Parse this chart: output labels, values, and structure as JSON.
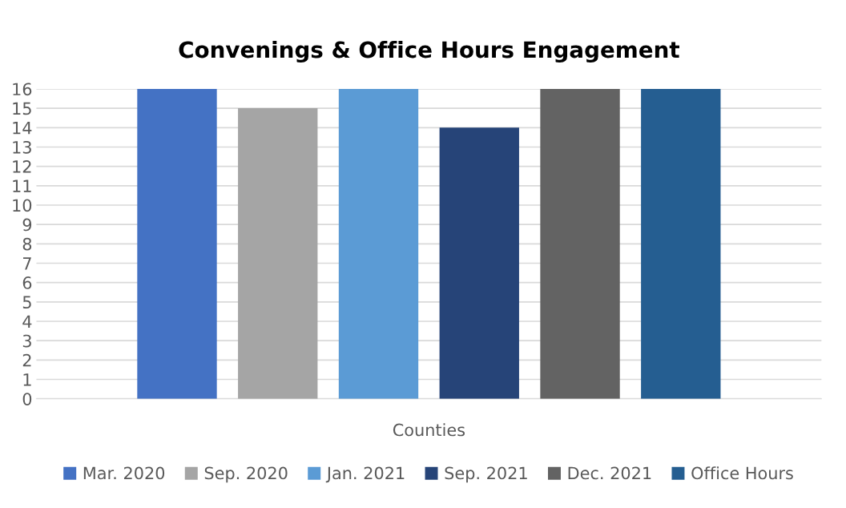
{
  "chart_data": {
    "type": "bar",
    "title": "Convenings & Office Hours Engagement",
    "categories": [
      "Counties"
    ],
    "series": [
      {
        "name": "Mar. 2020",
        "color": "#4472c4",
        "values": [
          16
        ]
      },
      {
        "name": "Sep. 2020",
        "color": "#a5a5a5",
        "values": [
          15
        ]
      },
      {
        "name": "Jan. 2021",
        "color": "#5b9bd5",
        "values": [
          16
        ]
      },
      {
        "name": "Sep. 2021",
        "color": "#264478",
        "values": [
          14
        ]
      },
      {
        "name": "Dec. 2021",
        "color": "#636363",
        "values": [
          16
        ]
      },
      {
        "name": "Office Hours",
        "color": "#255e91",
        "values": [
          16
        ]
      }
    ],
    "ylim": [
      0,
      16
    ],
    "yticks": [
      0,
      1,
      2,
      3,
      4,
      5,
      6,
      7,
      8,
      9,
      10,
      11,
      12,
      13,
      14,
      15,
      16
    ],
    "grid": "y",
    "legend": "bottom"
  }
}
